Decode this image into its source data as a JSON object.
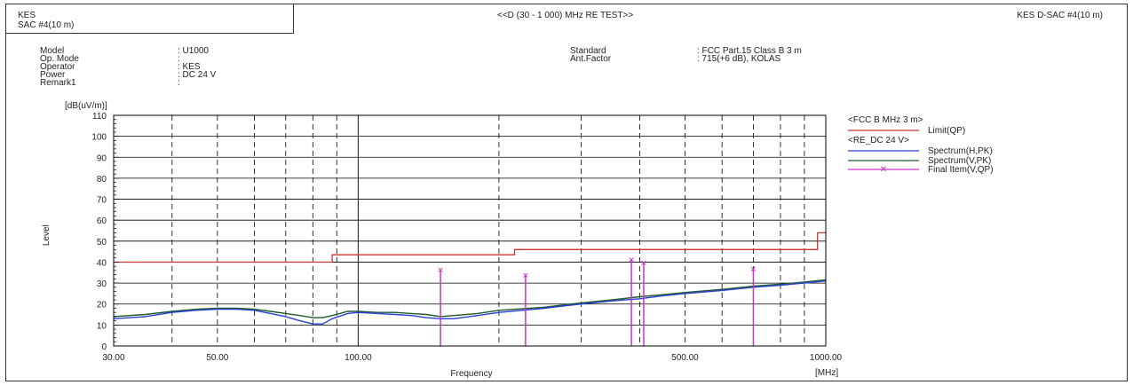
{
  "header": {
    "lab": "KES",
    "site": "SAC #4(10 m)",
    "title": "<<D (30 - 1 000) MHz RE TEST>>",
    "right": "KES D-SAC #4(10 m)"
  },
  "info_left": [
    {
      "label": "Model",
      "value": ": U1000"
    },
    {
      "label": "Op. Mode",
      "value": ":"
    },
    {
      "label": "Operator",
      "value": ": KES"
    },
    {
      "label": "Power",
      "value": ": DC 24 V"
    },
    {
      "label": "Remark1",
      "value": ":"
    }
  ],
  "info_right": [
    {
      "label": "Standard",
      "value": ": FCC Part.15 Class B 3 m"
    },
    {
      "label": "Ant.Factor",
      "value": ": 715(+6 dB), KOLAS"
    }
  ],
  "legend": {
    "group1": "<FCC B MHz 3 m>",
    "limit": "Limit(QP)",
    "group2": "<RE_DC 24 V>",
    "spec_h": "Spectrum(H,PK)",
    "spec_v": "Spectrum(V,PK)",
    "final": "Final Item(V,QP)"
  },
  "colors": {
    "limit": "#cc3333",
    "spectrum_h": "#2a3fd6",
    "spectrum_v": "#1f5a2a",
    "final": "#cc33cc",
    "grid": "#000000"
  },
  "chart_data": {
    "type": "line",
    "title": "<<D (30 - 1 000) MHz RE TEST>>",
    "xlabel": "Frequency",
    "xunit": "[MHz]",
    "ylabel": "Level",
    "yunit": "[dB(uV/m)]",
    "xscale": "log",
    "xlim": [
      30,
      1000
    ],
    "ylim": [
      0,
      110
    ],
    "y_ticks": [
      0,
      10,
      20,
      30,
      40,
      50,
      60,
      70,
      80,
      90,
      100,
      110
    ],
    "x_tick_labels": [
      {
        "x": 30,
        "label": "30.00"
      },
      {
        "x": 50,
        "label": "50.00"
      },
      {
        "x": 100,
        "label": "100.00"
      },
      {
        "x": 500,
        "label": "500.00"
      },
      {
        "x": 1000,
        "label": "1000.00"
      }
    ],
    "limit_qp": [
      [
        30,
        40
      ],
      [
        88,
        40
      ],
      [
        88,
        43.5
      ],
      [
        216,
        43.5
      ],
      [
        216,
        46
      ],
      [
        960,
        46
      ],
      [
        960,
        54
      ],
      [
        1000,
        54
      ]
    ],
    "spectrum_h": [
      [
        30,
        13
      ],
      [
        35,
        14
      ],
      [
        40,
        16
      ],
      [
        45,
        17
      ],
      [
        50,
        17.5
      ],
      [
        55,
        17.5
      ],
      [
        60,
        17
      ],
      [
        65,
        15.5
      ],
      [
        70,
        14
      ],
      [
        75,
        12
      ],
      [
        80,
        10.5
      ],
      [
        84,
        10.5
      ],
      [
        88,
        13
      ],
      [
        95,
        15.5
      ],
      [
        100,
        16
      ],
      [
        110,
        15.5
      ],
      [
        120,
        15
      ],
      [
        130,
        14.5
      ],
      [
        140,
        13.5
      ],
      [
        150,
        13
      ],
      [
        160,
        13
      ],
      [
        180,
        14.5
      ],
      [
        200,
        16
      ],
      [
        250,
        18
      ],
      [
        300,
        20
      ],
      [
        350,
        21.5
      ],
      [
        400,
        22.5
      ],
      [
        450,
        24
      ],
      [
        500,
        25
      ],
      [
        600,
        26.5
      ],
      [
        700,
        28
      ],
      [
        800,
        29
      ],
      [
        900,
        30
      ],
      [
        1000,
        31
      ]
    ],
    "spectrum_v": [
      [
        30,
        14
      ],
      [
        35,
        15
      ],
      [
        40,
        16.5
      ],
      [
        45,
        17.5
      ],
      [
        50,
        18
      ],
      [
        55,
        18
      ],
      [
        60,
        17.5
      ],
      [
        65,
        16.5
      ],
      [
        70,
        15.5
      ],
      [
        75,
        14.5
      ],
      [
        80,
        13.5
      ],
      [
        84,
        13.5
      ],
      [
        88,
        14.5
      ],
      [
        95,
        16.5
      ],
      [
        100,
        16.5
      ],
      [
        110,
        16
      ],
      [
        120,
        16
      ],
      [
        130,
        15.5
      ],
      [
        140,
        15
      ],
      [
        150,
        14
      ],
      [
        160,
        14.5
      ],
      [
        180,
        15.5
      ],
      [
        200,
        17
      ],
      [
        250,
        18.5
      ],
      [
        300,
        20.5
      ],
      [
        350,
        22
      ],
      [
        400,
        23.5
      ],
      [
        450,
        24.5
      ],
      [
        500,
        25.5
      ],
      [
        600,
        27
      ],
      [
        700,
        28.5
      ],
      [
        800,
        29.5
      ],
      [
        900,
        30.5
      ],
      [
        1000,
        31.5
      ]
    ],
    "final_qp": [
      {
        "freq": 150,
        "level": 36.5
      },
      {
        "freq": 228,
        "level": 34
      },
      {
        "freq": 384,
        "level": 41.5
      },
      {
        "freq": 408,
        "level": 40
      },
      {
        "freq": 700,
        "level": 37
      }
    ]
  }
}
